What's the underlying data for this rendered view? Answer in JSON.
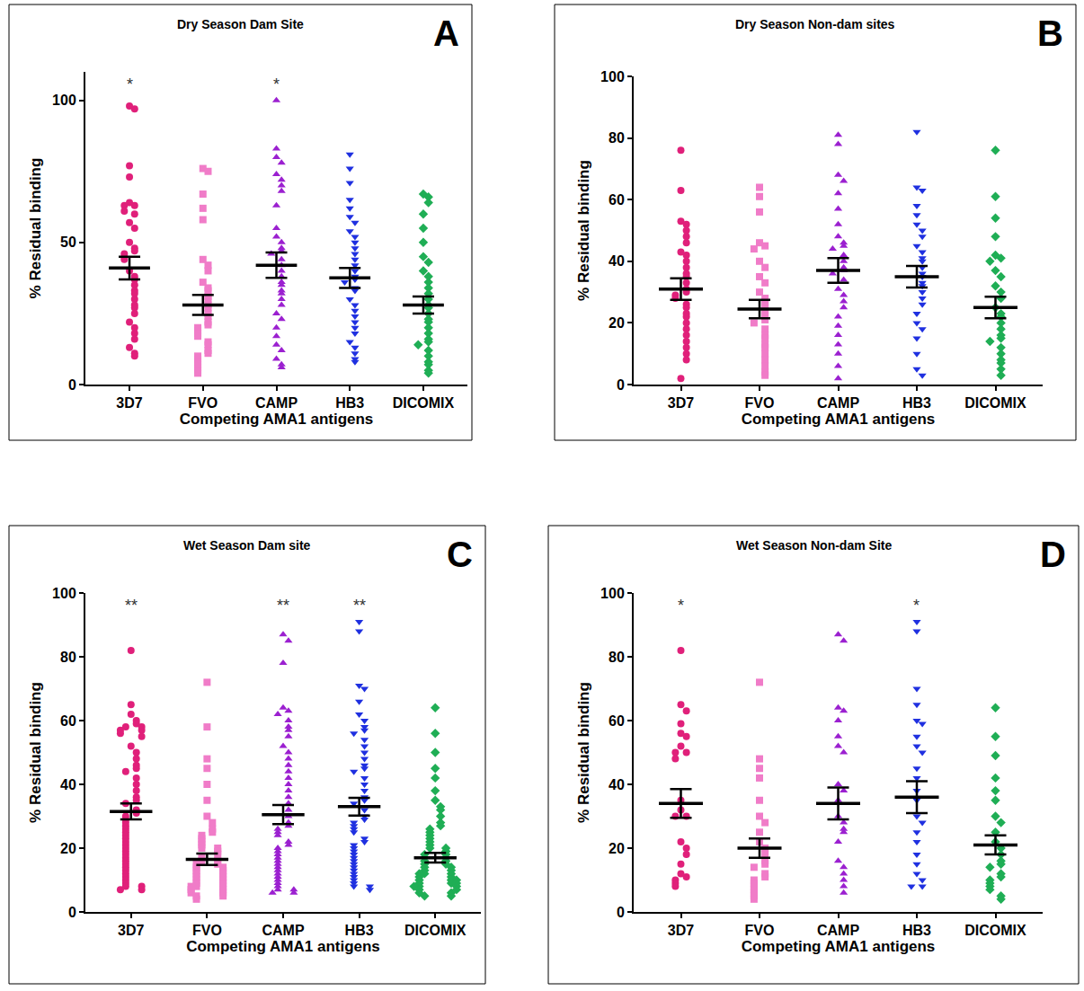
{
  "chart_data": [
    {
      "type": "scatter",
      "title": "Dry Season Dam Site",
      "panel": "A",
      "x_label": "Competing AMA1 antigens",
      "y_label": "% Residual binding",
      "ylim": [
        0,
        110
      ],
      "yticks": [
        0,
        50,
        100
      ],
      "grid": false,
      "series": [
        {
          "name": "3D7",
          "color": "#e0207a",
          "marker": "circle",
          "mean": 41,
          "sem": 4,
          "values": [
            98,
            97,
            77,
            73,
            64,
            63,
            63,
            61,
            60,
            57,
            55,
            50,
            48,
            47,
            46,
            45,
            44,
            40,
            38,
            37,
            35,
            33,
            32,
            30,
            28,
            27,
            25,
            22,
            20,
            18,
            16,
            13,
            11,
            10
          ]
        },
        {
          "name": "FVO",
          "color": "#f07cc8",
          "marker": "square",
          "mean": 28,
          "sem": 3.5,
          "values": [
            76,
            75,
            67,
            62,
            58,
            44,
            42,
            40,
            36,
            34,
            33,
            31,
            30,
            28,
            27,
            25,
            24,
            22,
            21,
            20,
            19,
            18,
            17,
            15,
            14,
            12,
            11,
            10,
            9,
            8,
            7,
            6,
            5,
            4
          ]
        },
        {
          "name": "CAMP",
          "color": "#9b20d0",
          "marker": "triangle-up",
          "mean": 42,
          "sem": 4.5,
          "values": [
            100,
            83,
            80,
            78,
            74,
            72,
            70,
            68,
            63,
            55,
            52,
            50,
            48,
            47,
            46,
            44,
            42,
            40,
            38,
            36,
            35,
            33,
            32,
            30,
            28,
            25,
            23,
            20,
            17,
            14,
            12,
            9,
            7,
            6
          ]
        },
        {
          "name": "HB3",
          "color": "#1f30e0",
          "marker": "triangle-down",
          "mean": 37.5,
          "sem": 3.5,
          "values": [
            81,
            76,
            71,
            65,
            62,
            59,
            57,
            54,
            52,
            50,
            48,
            46,
            44,
            42,
            40,
            38,
            37,
            36,
            34,
            33,
            30,
            28,
            26,
            24,
            22,
            20,
            18,
            15,
            13,
            11,
            9,
            8
          ]
        },
        {
          "name": "DICOMIX",
          "color": "#1fae55",
          "marker": "diamond",
          "mean": 28,
          "sem": 3,
          "values": [
            67,
            66,
            64,
            60,
            55,
            50,
            45,
            43,
            40,
            38,
            36,
            34,
            32,
            30,
            28,
            27,
            25,
            23,
            22,
            20,
            18,
            16,
            15,
            14,
            12,
            10,
            8,
            7,
            5,
            4
          ]
        }
      ],
      "annotations": [
        {
          "text": "*",
          "category": "3D7"
        },
        {
          "text": "*",
          "category": "CAMP"
        }
      ]
    },
    {
      "type": "scatter",
      "title": "Dry Season Non-dam sites",
      "panel": "B",
      "x_label": "Competing AMA1 antigens",
      "y_label": "% Residual binding",
      "ylim": [
        0,
        100
      ],
      "yticks": [
        0,
        20,
        40,
        60,
        80,
        100
      ],
      "grid": false,
      "series": [
        {
          "name": "3D7",
          "color": "#e0207a",
          "marker": "circle",
          "mean": 31,
          "sem": 3.5,
          "values": [
            76,
            63,
            53,
            52,
            50,
            48,
            46,
            43,
            42,
            40,
            38,
            36,
            35,
            33,
            31,
            30,
            29,
            28,
            26,
            25,
            23,
            22,
            20,
            18,
            16,
            14,
            12,
            10,
            8,
            2
          ]
        },
        {
          "name": "FVO",
          "color": "#f07cc8",
          "marker": "square",
          "mean": 24.5,
          "sem": 3,
          "values": [
            64,
            61,
            56,
            46,
            45,
            44,
            40,
            38,
            35,
            33,
            30,
            28,
            27,
            25,
            24,
            22,
            21,
            20,
            18,
            16,
            15,
            13,
            12,
            10,
            8,
            6,
            4,
            3
          ]
        },
        {
          "name": "CAMP",
          "color": "#9b20d0",
          "marker": "triangle-up",
          "mean": 37,
          "sem": 4,
          "values": [
            81,
            78,
            68,
            66,
            62,
            57,
            52,
            48,
            46,
            45,
            44,
            42,
            40,
            38,
            37,
            36,
            34,
            31,
            29,
            27,
            25,
            22,
            19,
            16,
            13,
            10,
            6,
            2
          ]
        },
        {
          "name": "HB3",
          "color": "#1f30e0",
          "marker": "triangle-down",
          "mean": 35,
          "sem": 3.5,
          "values": [
            82,
            64,
            63,
            58,
            55,
            52,
            50,
            48,
            45,
            43,
            41,
            40,
            38,
            36,
            35,
            33,
            32,
            30,
            28,
            26,
            23,
            20,
            18,
            15,
            10,
            5,
            3
          ]
        },
        {
          "name": "DICOMIX",
          "color": "#1fae55",
          "marker": "diamond",
          "mean": 25,
          "sem": 3.5,
          "values": [
            76,
            61,
            54,
            48,
            42,
            41,
            40,
            37,
            35,
            32,
            30,
            28,
            25,
            23,
            22,
            20,
            18,
            16,
            15,
            14,
            12,
            10,
            8,
            7,
            5,
            3
          ]
        }
      ],
      "annotations": []
    },
    {
      "type": "scatter",
      "title": "Wet Season Dam site",
      "panel": "C",
      "x_label": "Competing AMA1 antigens",
      "y_label": "% Residual binding",
      "ylim": [
        0,
        100
      ],
      "yticks": [
        0,
        20,
        40,
        60,
        80,
        100
      ],
      "grid": false,
      "series": [
        {
          "name": "3D7",
          "color": "#e0207a",
          "marker": "circle",
          "mean": 31.5,
          "sem": 2.5,
          "values": [
            82,
            65,
            62,
            60,
            59,
            58,
            58,
            57,
            57,
            56,
            55,
            52,
            50,
            48,
            46,
            45,
            44,
            42,
            40,
            38,
            36,
            35,
            34,
            32,
            31,
            30,
            29,
            28,
            27,
            26,
            25,
            24,
            23,
            22,
            21,
            20,
            19,
            18,
            17,
            16,
            15,
            14,
            13,
            12,
            11,
            10,
            9,
            8,
            8,
            7,
            7
          ]
        },
        {
          "name": "FVO",
          "color": "#f07cc8",
          "marker": "square",
          "mean": 16.5,
          "sem": 1.8,
          "values": [
            72,
            58,
            48,
            45,
            40,
            35,
            30,
            28,
            26,
            25,
            24,
            23,
            22,
            21,
            20,
            20,
            19,
            18,
            17,
            16,
            16,
            15,
            15,
            14,
            14,
            13,
            13,
            12,
            12,
            11,
            11,
            10,
            10,
            9,
            9,
            8,
            8,
            8,
            7,
            7,
            6,
            6,
            5,
            5,
            4
          ]
        },
        {
          "name": "CAMP",
          "color": "#9b20d0",
          "marker": "triangle-up",
          "mean": 30.5,
          "sem": 3,
          "values": [
            87,
            85,
            78,
            64,
            63,
            62,
            60,
            58,
            57,
            55,
            52,
            50,
            48,
            46,
            44,
            42,
            40,
            38,
            36,
            34,
            32,
            30,
            28,
            27,
            26,
            25,
            24,
            22,
            21,
            20,
            19,
            18,
            17,
            16,
            15,
            14,
            13,
            12,
            11,
            10,
            9,
            8,
            7,
            7,
            6,
            6
          ]
        },
        {
          "name": "HB3",
          "color": "#1f30e0",
          "marker": "triangle-down",
          "mean": 33,
          "sem": 2.8,
          "values": [
            91,
            88,
            71,
            70,
            66,
            62,
            60,
            58,
            57,
            56,
            54,
            52,
            50,
            48,
            46,
            45,
            44,
            42,
            40,
            38,
            36,
            35,
            34,
            32,
            30,
            29,
            28,
            27,
            26,
            25,
            23,
            22,
            21,
            20,
            19,
            18,
            17,
            16,
            15,
            14,
            13,
            12,
            11,
            10,
            9,
            8,
            8,
            7
          ]
        },
        {
          "name": "DICOMIX",
          "color": "#1fae55",
          "marker": "diamond",
          "mean": 17,
          "sem": 1.5,
          "values": [
            64,
            56,
            50,
            45,
            42,
            38,
            35,
            33,
            32,
            30,
            28,
            27,
            26,
            25,
            24,
            23,
            22,
            21,
            20,
            20,
            19,
            18,
            18,
            17,
            16,
            16,
            15,
            15,
            14,
            14,
            13,
            13,
            12,
            12,
            12,
            11,
            11,
            10,
            10,
            10,
            9,
            9,
            9,
            8,
            8,
            8,
            7,
            7,
            6,
            6,
            5,
            5
          ]
        }
      ],
      "annotations": [
        {
          "text": "**",
          "category": "3D7"
        },
        {
          "text": "**",
          "category": "CAMP"
        },
        {
          "text": "**",
          "category": "HB3"
        }
      ]
    },
    {
      "type": "scatter",
      "title": "Wet Season Non-dam Site",
      "panel": "D",
      "x_label": "Competing AMA1 antigens",
      "y_label": "% Residual binding",
      "ylim": [
        0,
        100
      ],
      "yticks": [
        0,
        20,
        40,
        60,
        80,
        100
      ],
      "grid": false,
      "series": [
        {
          "name": "3D7",
          "color": "#e0207a",
          "marker": "circle",
          "mean": 34,
          "sem": 4.5,
          "values": [
            82,
            65,
            63,
            59,
            56,
            55,
            52,
            50,
            50,
            48,
            35,
            32,
            30,
            30,
            22,
            20,
            18,
            15,
            12,
            11,
            10,
            9,
            8
          ]
        },
        {
          "name": "FVO",
          "color": "#f07cc8",
          "marker": "square",
          "mean": 20,
          "sem": 3,
          "values": [
            72,
            48,
            45,
            42,
            35,
            30,
            28,
            25,
            22,
            20,
            18,
            16,
            15,
            14,
            12,
            11,
            10,
            9,
            8,
            7,
            6,
            5,
            4
          ]
        },
        {
          "name": "CAMP",
          "color": "#9b20d0",
          "marker": "triangle-up",
          "mean": 34,
          "sem": 5,
          "values": [
            87,
            85,
            64,
            63,
            60,
            55,
            52,
            50,
            40,
            38,
            35,
            30,
            28,
            26,
            25,
            22,
            16,
            14,
            12,
            10,
            8,
            6
          ]
        },
        {
          "name": "HB3",
          "color": "#1f30e0",
          "marker": "triangle-down",
          "mean": 36,
          "sem": 5,
          "values": [
            91,
            88,
            70,
            65,
            60,
            59,
            55,
            52,
            50,
            45,
            42,
            38,
            35,
            30,
            28,
            25,
            22,
            18,
            15,
            12,
            10,
            8,
            8
          ]
        },
        {
          "name": "DICOMIX",
          "color": "#1fae55",
          "marker": "diamond",
          "mean": 21,
          "sem": 3,
          "values": [
            64,
            55,
            49,
            42,
            38,
            35,
            30,
            28,
            25,
            22,
            20,
            18,
            16,
            15,
            14,
            12,
            11,
            10,
            9,
            8,
            7,
            5,
            4
          ]
        }
      ],
      "annotations": [
        {
          "text": "*",
          "category": "3D7"
        },
        {
          "text": "*",
          "category": "HB3"
        }
      ]
    }
  ]
}
